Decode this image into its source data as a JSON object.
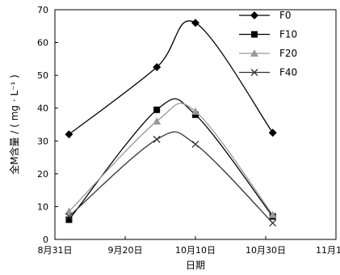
{
  "chart_data": {
    "type": "line",
    "xlabel": "日期",
    "ylabel": "全M含量 / ( mg · L⁻¹ )",
    "x_axis": {
      "type": "date",
      "ticks": [
        "2000-08-31",
        "2000-09-20",
        "2000-10-10",
        "2000-10-30",
        "2000-11-19"
      ],
      "tick_labels": [
        "8月31日",
        "9月20日",
        "10月10日",
        "10月30日",
        "11月19日"
      ],
      "range": [
        "2000-08-31",
        "2000-11-19"
      ]
    },
    "y_axis": {
      "range": [
        0,
        70
      ],
      "ticks": [
        0,
        10,
        20,
        30,
        40,
        50,
        60,
        70
      ]
    },
    "grid": false,
    "legend": {
      "position": "top-right",
      "entries": [
        "F0",
        "F10",
        "F20",
        "F40"
      ]
    },
    "x": [
      "2000-09-04",
      "2000-09-29",
      "2000-10-10",
      "2000-11-01"
    ],
    "series": [
      {
        "name": "F0",
        "marker": "diamond",
        "color": "#000000",
        "values": [
          32,
          52.5,
          66,
          32.5
        ]
      },
      {
        "name": "F10",
        "marker": "square",
        "color": "#000000",
        "values": [
          6,
          39.5,
          38,
          7
        ]
      },
      {
        "name": "F20",
        "marker": "triangle",
        "color": "#999999",
        "values": [
          8.5,
          36,
          39,
          7.5
        ]
      },
      {
        "name": "F40",
        "marker": "x",
        "color": "#333333",
        "values": [
          7,
          30.5,
          29,
          5
        ]
      }
    ]
  }
}
